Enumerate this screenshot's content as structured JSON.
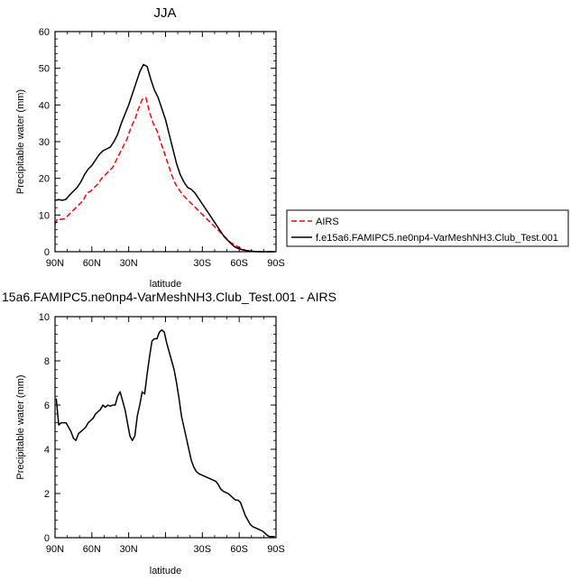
{
  "chart_data": [
    {
      "type": "line",
      "title": "JJA",
      "xlabel": "latitude",
      "ylabel": "Precipitable water (mm)",
      "xlim": [
        90,
        -90
      ],
      "ylim": [
        0,
        60
      ],
      "xticks": [
        90,
        60,
        30,
        0,
        -30,
        -60,
        -90
      ],
      "xtick_labels": [
        "90N",
        "60N",
        "30N",
        "",
        "30S",
        "60S",
        "90S"
      ],
      "yticks": [
        0,
        10,
        20,
        30,
        40,
        50,
        60
      ],
      "ytick_labels": [
        "0",
        "10",
        "20",
        "30",
        "40",
        "50",
        "60"
      ],
      "legend_position": "outside-right",
      "series": [
        {
          "name": "AIRS",
          "color": "#ff0000",
          "dash": "dashed",
          "x": [
            90,
            88,
            85,
            82,
            79,
            76,
            73,
            70,
            67,
            64,
            61,
            58,
            55,
            52,
            49,
            46,
            43,
            40,
            37,
            34,
            31,
            28,
            25,
            22,
            19,
            16,
            13,
            10,
            7,
            4,
            1,
            -2,
            -5,
            -8,
            -11,
            -14,
            -17,
            -20,
            -23,
            -26,
            -29,
            -32,
            -35,
            -38,
            -41,
            -44,
            -47,
            -50,
            -53,
            -56,
            -59,
            -62,
            -65,
            -68,
            -71,
            -74,
            -77,
            -80,
            -83,
            -86,
            -89
          ],
          "values": [
            7.5,
            9.0,
            8.8,
            9.0,
            10.0,
            11.0,
            12.0,
            13.0,
            14.0,
            16.0,
            16.5,
            17.5,
            18.5,
            20.0,
            21.0,
            22.0,
            23.0,
            25.0,
            27.0,
            29.0,
            31.0,
            34.0,
            36.0,
            39.0,
            41.5,
            42.0,
            38.0,
            35.0,
            33.0,
            30.0,
            27.0,
            24.0,
            21.0,
            18.5,
            17.0,
            15.5,
            14.5,
            13.5,
            12.5,
            11.5,
            10.5,
            9.5,
            8.5,
            7.5,
            6.5,
            5.5,
            4.5,
            3.5,
            2.5,
            2.0,
            1.3,
            0.8,
            0.4,
            0.2,
            0.1,
            0.0,
            0.0,
            0.0,
            0.0,
            0.0,
            0.0
          ]
        },
        {
          "name": "f.e15a6.FAMIPC5.ne0np4-VarMeshNH3.Club_Test.001",
          "color": "#000000",
          "dash": "solid",
          "x": [
            90,
            87,
            84,
            81,
            78,
            75,
            72,
            69,
            66,
            63,
            60,
            57,
            54,
            51,
            48,
            45,
            42,
            39,
            36,
            33,
            30,
            27,
            24,
            21,
            18,
            15,
            12,
            9,
            6,
            3,
            0,
            -3,
            -6,
            -9,
            -12,
            -15,
            -18,
            -21,
            -24,
            -27,
            -30,
            -33,
            -36,
            -39,
            -42,
            -45,
            -48,
            -51,
            -54,
            -57,
            -60,
            -63,
            -66,
            -69,
            -72,
            -75,
            -78,
            -81,
            -84,
            -87,
            -89
          ],
          "values": [
            14.0,
            14.2,
            14.0,
            14.3,
            15.5,
            16.5,
            17.5,
            19.0,
            21.0,
            22.5,
            23.5,
            25.0,
            26.5,
            27.5,
            28.0,
            28.5,
            30.0,
            32.0,
            35.0,
            37.5,
            40.0,
            43.0,
            46.0,
            49.0,
            51.0,
            50.5,
            47.0,
            44.0,
            42.0,
            39.0,
            36.0,
            32.0,
            28.0,
            24.0,
            21.0,
            19.0,
            17.5,
            17.0,
            16.0,
            14.5,
            13.0,
            11.5,
            10.0,
            8.5,
            7.0,
            5.5,
            4.0,
            3.0,
            2.0,
            1.2,
            0.8,
            0.5,
            0.3,
            0.2,
            0.1,
            0.0,
            0.0,
            0.0,
            0.0,
            0.0,
            0.0
          ]
        }
      ]
    },
    {
      "type": "line",
      "title": "15a6.FAMIPC5.ne0np4-VarMeshNH3.Club_Test.001 - AIRS",
      "xlabel": "latitude",
      "ylabel": "Precipitable water (mm)",
      "xlim": [
        90,
        -90
      ],
      "ylim": [
        0,
        10
      ],
      "xticks": [
        90,
        60,
        30,
        0,
        -30,
        -60,
        -90
      ],
      "xtick_labels": [
        "90N",
        "60N",
        "30N",
        "",
        "30S",
        "60S",
        "90S"
      ],
      "yticks": [
        0,
        2,
        4,
        6,
        8,
        10
      ],
      "ytick_labels": [
        "0",
        "2",
        "4",
        "6",
        "8",
        "10"
      ],
      "series": [
        {
          "color": "#000000",
          "dash": "solid",
          "x": [
            89,
            87,
            85,
            83,
            81,
            79,
            77,
            75,
            73,
            71,
            69,
            67,
            65,
            63,
            61,
            59,
            57,
            55,
            53,
            51,
            49,
            47,
            45,
            43,
            41,
            39,
            37,
            35,
            33,
            31,
            29,
            27,
            25,
            23,
            21,
            19,
            17,
            15,
            13,
            11,
            9,
            7,
            5,
            3,
            1,
            -1,
            -3,
            -5,
            -7,
            -9,
            -11,
            -13,
            -15,
            -17,
            -19,
            -21,
            -23,
            -25,
            -27,
            -29,
            -31,
            -33,
            -35,
            -37,
            -39,
            -41,
            -43,
            -45,
            -47,
            -49,
            -51,
            -53,
            -55,
            -57,
            -59,
            -61,
            -63,
            -65,
            -67,
            -69,
            -71,
            -73,
            -75,
            -77,
            -79,
            -81,
            -83,
            -85,
            -87,
            -89
          ],
          "values": [
            6.3,
            5.1,
            5.2,
            5.2,
            5.2,
            5.0,
            4.8,
            4.5,
            4.4,
            4.7,
            4.8,
            4.9,
            5.0,
            5.2,
            5.3,
            5.4,
            5.6,
            5.7,
            5.8,
            6.0,
            5.9,
            6.0,
            5.95,
            6.0,
            6.0,
            6.4,
            6.6,
            6.2,
            5.8,
            5.2,
            4.6,
            4.4,
            4.6,
            5.5,
            6.0,
            6.6,
            6.5,
            7.4,
            8.2,
            8.9,
            9.0,
            9.0,
            9.3,
            9.4,
            9.3,
            8.8,
            8.4,
            8.0,
            7.6,
            7.0,
            6.3,
            5.5,
            5.0,
            4.5,
            4.0,
            3.5,
            3.2,
            3.0,
            2.9,
            2.85,
            2.8,
            2.75,
            2.7,
            2.65,
            2.6,
            2.55,
            2.4,
            2.2,
            2.1,
            2.05,
            2.0,
            1.9,
            1.8,
            1.7,
            1.7,
            1.6,
            1.3,
            1.0,
            0.8,
            0.6,
            0.5,
            0.45,
            0.4,
            0.35,
            0.3,
            0.2,
            0.1,
            0.05,
            0.05,
            0.05
          ]
        }
      ]
    }
  ]
}
